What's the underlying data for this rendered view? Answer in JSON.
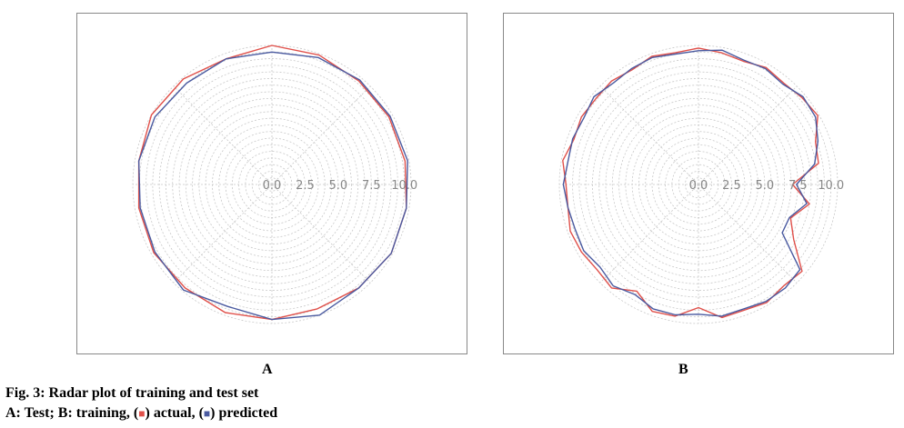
{
  "chart_data": [
    {
      "type": "radar",
      "panel": "A",
      "r_ticks": [
        "0.0",
        "2.5",
        "5.0",
        "7.5",
        "10.0"
      ],
      "rlim": [
        0,
        10.5
      ],
      "grid": true,
      "series": [
        {
          "key": "actual",
          "color": "#e0504a",
          "values": [
            10.5,
            10.4,
            10.2,
            10.2,
            10.2,
            10.3,
            10.4,
            10.2,
            10.0,
            10.2,
            10.3,
            10.2,
            10.3,
            10.2,
            10.2,
            10.5,
            10.4,
            10.1
          ]
        },
        {
          "key": "predicted",
          "color": "#4a5aa0",
          "values": [
            10.0,
            10.2,
            10.3,
            10.3,
            10.4,
            10.3,
            10.4,
            10.2,
            10.5,
            10.2,
            9.8,
            10.4,
            10.2,
            10.1,
            10.2,
            10.2,
            10.0,
            10.1
          ]
        }
      ]
    },
    {
      "type": "radar",
      "panel": "B",
      "r_ticks": [
        "0.0",
        "2.5",
        "5.0",
        "7.5",
        "10.0"
      ],
      "rlim": [
        0,
        10.5
      ],
      "grid": true,
      "series": [
        {
          "key": "actual",
          "color": "#e0504a",
          "values": [
            10.3,
            10.1,
            9.9,
            10.2,
            10.0,
            10.2,
            10.4,
            9.4,
            9.2,
            7.1,
            8.5,
            7.4,
            8.3,
            10.2,
            10.0,
            10.3,
            10.1,
            10.2,
            9.3,
            10.1,
            10.2,
            9.3,
            10.2,
            10.0,
            10.2,
            10.3,
            10.0,
            10.0,
            10.4,
            10.0,
            10.2,
            10.1,
            10.2,
            10.0,
            10.3,
            10.1
          ]
        },
        {
          "key": "predicted",
          "color": "#4a5aa0",
          "values": [
            10.1,
            10.3,
            10.0,
            10.1,
            9.9,
            10.3,
            10.2,
            9.6,
            8.9,
            7.4,
            8.3,
            7.3,
            7.3,
            10.0,
            10.2,
            10.2,
            10.0,
            10.1,
            9.8,
            10.0,
            10.0,
            9.6,
            10.0,
            9.7,
            10.0,
            9.9,
            10.0,
            10.2,
            10.0,
            10.1,
            10.0,
            10.3,
            10.0,
            10.1,
            10.2,
            10.0
          ]
        }
      ]
    }
  ],
  "panel_labels": {
    "a": "A",
    "b": "B"
  },
  "caption": {
    "line1": "Fig. 3: Radar plot of training and test set",
    "line2_part1": "A: Test; B: training, (",
    "marker_actual": "■",
    "line2_part2": ") actual, (",
    "marker_predicted": "■",
    "line2_part3": ") predicted",
    "actual_color": "#e0504a",
    "predicted_color": "#4a5aa0"
  }
}
